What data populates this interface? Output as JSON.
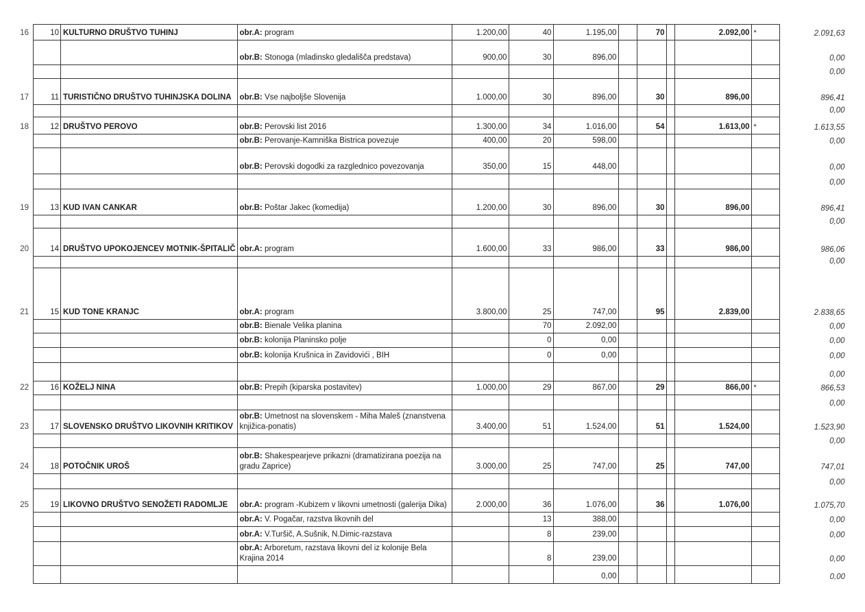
{
  "rows": [
    {
      "a": "16",
      "b": "10",
      "name": "KULTURNO DRUŠTVO TUHINJ",
      "kind": "obr.A:",
      "desc": "program",
      "req": "1.200,00",
      "pts": "40",
      "amt": "1.195,00",
      "p2": "70",
      "total": "2.092,00",
      "star": "*",
      "fin": "2.091,63"
    },
    {
      "kind": "obr.B:",
      "desc": "Stonoga (mladinsko gledališča predstava)",
      "req": "900,00",
      "pts": "30",
      "amt": "896,00",
      "fin": "0,00"
    },
    {
      "fin": "0,00"
    },
    {
      "a": "17",
      "b": "11",
      "name": "TURISTIČNO DRUŠTVO TUHINJSKA DOLINA",
      "kind": "obr.B:",
      "desc": "Vse najboljše Slovenija",
      "req": "1.000,00",
      "pts": "30",
      "amt": "896,00",
      "p2": "30",
      "total": "896,00",
      "fin": "896,41"
    },
    {
      "fin": "0,00"
    },
    {
      "a": "18",
      "b": "12",
      "name": "DRUŠTVO PEROVO",
      "kind": "obr.B:",
      "desc": "Perovski list 2016",
      "req": "1.300,00",
      "pts": "34",
      "amt": "1.016,00",
      "p2": "54",
      "total": "1.613,00",
      "star": "*",
      "fin": "1.613,55"
    },
    {
      "kind": "obr.B:",
      "desc": "Perovanje-Kamniška Bistrica povezuje",
      "req": "400,00",
      "pts": "20",
      "amt": "598,00",
      "fin": "0,00"
    },
    {
      "kind": "obr.B:",
      "desc": "Perovski dogodki za razglednico povezovanja",
      "req": "350,00",
      "pts": "15",
      "amt": "448,00",
      "fin": "0,00"
    },
    {
      "fin": "0,00"
    },
    {
      "a": "19",
      "b": "13",
      "name": "KUD IVAN CANKAR",
      "kind": "obr.B:",
      "desc": "Poštar Jakec (komedija)",
      "req": "1.200,00",
      "pts": "30",
      "amt": "896,00",
      "p2": "30",
      "total": "896,00",
      "fin": "896,41"
    },
    {
      "fin": "0,00"
    },
    {
      "a": "20",
      "b": "14",
      "name": "DRUŠTVO UPOKOJENCEV MOTNIK-ŠPITALIČ",
      "kind": "obr.A:",
      "desc": "program",
      "req": "1.600,00",
      "pts": "33",
      "amt": "986,00",
      "p2": "33",
      "total": "986,00",
      "fin": "986,06"
    },
    {
      "fin": "0,00"
    },
    {
      "a": "21",
      "b": "15",
      "name": "KUD TONE KRANJC",
      "kind": "obr.A:",
      "desc": "program",
      "req": "3.800,00",
      "pts": "25",
      "amt": "747,00",
      "p2": "95",
      "total": "2.839,00",
      "fin": "2.838,65"
    },
    {
      "kind": "obr.B:",
      "desc": "Bienale Velika planina",
      "pts": "70",
      "amt": "2.092,00",
      "fin": "0,00"
    },
    {
      "kind": "obr.B:",
      "desc": "kolonija Planinsko polje",
      "pts": "0",
      "amt": "0,00",
      "fin": "0,00"
    },
    {
      "kind": "obr.B:",
      "desc": "kolonija Krušnica in Zavidovići , BIH",
      "pts": "0",
      "amt": "0,00",
      "fin": "0,00"
    },
    {
      "fin": "0,00"
    },
    {
      "a": "22",
      "b": "16",
      "name": "KOŽELJ NINA",
      "kind": "obr.B:",
      "desc": "Prepih (kiparska postavitev)",
      "req": "1.000,00",
      "pts": "29",
      "amt": "867,00",
      "p2": "29",
      "total": "866,00",
      "star": "*",
      "fin": "866,53"
    },
    {
      "fin": "0,00"
    },
    {
      "a": "23",
      "b": "17",
      "name": "SLOVENSKO DRUŠTVO LIKOVNIH KRITIKOV",
      "kind": "obr.B:",
      "desc": "Umetnost na slovenskem - Miha Maleš (znanstvena knjižica-ponatis)",
      "req": "3.400,00",
      "pts": "51",
      "amt": "1.524,00",
      "p2": "51",
      "total": "1.524,00",
      "fin": "1.523,90"
    },
    {
      "fin": "0,00"
    },
    {
      "a": "24",
      "b": "18",
      "name": "POTOČNIK UROŠ",
      "kind": "obr.B:",
      "desc": "Shakespearjeve prikazni (dramatizirana poezija na gradu Zaprice)",
      "req": "3.000,00",
      "pts": "25",
      "amt": "747,00",
      "p2": "25",
      "total": "747,00",
      "fin": "747,01"
    },
    {
      "fin": "0,00"
    },
    {
      "a": "25",
      "b": "19",
      "name": "LIKOVNO DRUŠTVO SENOŽETI RADOMLJE",
      "kind": "obr.A:",
      "desc": "program -Kubizem v likovni umetnosti (galerija Dika)",
      "req": "2.000,00",
      "pts": "36",
      "amt": "1.076,00",
      "p2": "36",
      "total": "1.076,00",
      "fin": "1.075,70"
    },
    {
      "kind": "obr.A:",
      "desc": "V. Pogačar, razstva likovnih del",
      "pts": "13",
      "amt": "388,00",
      "fin": "0,00"
    },
    {
      "kind": "obr.A:",
      "desc": "V.Turšič, A.Sušnik, N.Dimic-razstava",
      "pts": "8",
      "amt": "239,00",
      "fin": "0,00"
    },
    {
      "kind": "obr.A:",
      "desc": "Arboretum, razstava likovni del iz kolonije Bela Krajina 2014",
      "pts": "8",
      "amt": "239,00",
      "fin": "0,00"
    },
    {
      "amt": "0,00",
      "fin": "0,00"
    }
  ]
}
